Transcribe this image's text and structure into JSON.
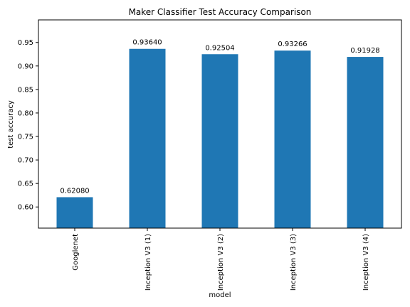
{
  "chart_data": {
    "type": "bar",
    "title": "Maker Classifier Test Accuracy Comparison",
    "xlabel": "model",
    "ylabel": "test accuracy",
    "categories": [
      "Googlenet",
      "Inception V3 (1)",
      "Inception V3 (2)",
      "Inception V3 (3)",
      "Inception V3 (4)"
    ],
    "values": [
      0.6208,
      0.9364,
      0.92504,
      0.93266,
      0.91928
    ],
    "data_labels": [
      "0.62080",
      "0.93640",
      "0.92504",
      "0.93266",
      "0.91928"
    ],
    "ylim": [
      0.555,
      0.998
    ],
    "yticks": [
      0.6,
      0.65,
      0.7,
      0.75,
      0.8,
      0.85,
      0.9,
      0.95
    ],
    "ytick_labels": [
      "0.60",
      "0.65",
      "0.70",
      "0.75",
      "0.80",
      "0.85",
      "0.90",
      "0.95"
    ],
    "bar_color": "#1f77b4",
    "grid": false,
    "legend": "none"
  }
}
